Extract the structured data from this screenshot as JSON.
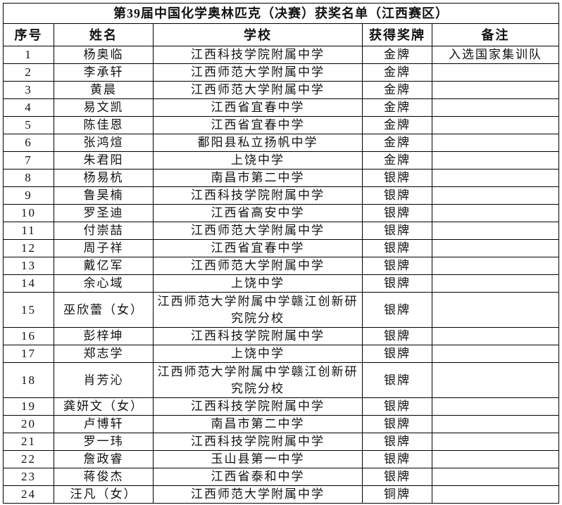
{
  "title": "第39届中国化学奥林匹克（决赛）获奖名单（江西赛区）",
  "headers": [
    "序号",
    "姓名",
    "学校",
    "获得奖牌",
    "备注"
  ],
  "rows": [
    {
      "no": "1",
      "name": "杨奥临",
      "school": "江西科技学院附属中学",
      "medal": "金牌",
      "note": "入选国家集训队"
    },
    {
      "no": "2",
      "name": "李承轩",
      "school": "江西师范大学附属中学",
      "medal": "金牌",
      "note": ""
    },
    {
      "no": "3",
      "name": "黄晨",
      "school": "江西师范大学附属中学",
      "medal": "金牌",
      "note": ""
    },
    {
      "no": "4",
      "name": "易文凯",
      "school": "江西省宜春中学",
      "medal": "金牌",
      "note": ""
    },
    {
      "no": "5",
      "name": "陈佳恩",
      "school": "江西省宜春中学",
      "medal": "金牌",
      "note": ""
    },
    {
      "no": "6",
      "name": "张鸿煊",
      "school": "鄱阳县私立扬帆中学",
      "medal": "金牌",
      "note": ""
    },
    {
      "no": "7",
      "name": "朱君阳",
      "school": "上饶中学",
      "medal": "金牌",
      "note": ""
    },
    {
      "no": "8",
      "name": "杨易杭",
      "school": "南昌市第二中学",
      "medal": "银牌",
      "note": ""
    },
    {
      "no": "9",
      "name": "鲁昊楠",
      "school": "江西科技学院附属中学",
      "medal": "银牌",
      "note": ""
    },
    {
      "no": "10",
      "name": "罗圣迪",
      "school": "江西省高安中学",
      "medal": "银牌",
      "note": ""
    },
    {
      "no": "11",
      "name": "付崇喆",
      "school": "江西师范大学附属中学",
      "medal": "银牌",
      "note": ""
    },
    {
      "no": "12",
      "name": "周子祥",
      "school": "江西省宜春中学",
      "medal": "银牌",
      "note": ""
    },
    {
      "no": "13",
      "name": "戴亿军",
      "school": "江西师范大学附属中学",
      "medal": "银牌",
      "note": ""
    },
    {
      "no": "14",
      "name": "余心域",
      "school": "上饶中学",
      "medal": "银牌",
      "note": ""
    },
    {
      "no": "15",
      "name": "巫欣蕾（女）",
      "school": "江西师范大学附属中学赣江创新研究院分校",
      "medal": "银牌",
      "note": ""
    },
    {
      "no": "16",
      "name": "彭梓坤",
      "school": "江西科技学院附属中学",
      "medal": "银牌",
      "note": ""
    },
    {
      "no": "17",
      "name": "郑志学",
      "school": "上饶中学",
      "medal": "银牌",
      "note": ""
    },
    {
      "no": "18",
      "name": "肖芳沁",
      "school": "江西师范大学附属中学赣江创新研究院分校",
      "medal": "银牌",
      "note": ""
    },
    {
      "no": "19",
      "name": "龚妍文（女）",
      "school": "江西科技学院附属中学",
      "medal": "银牌",
      "note": ""
    },
    {
      "no": "20",
      "name": "卢博轩",
      "school": "南昌市第二中学",
      "medal": "银牌",
      "note": ""
    },
    {
      "no": "21",
      "name": "罗一玮",
      "school": "江西科技学院附属中学",
      "medal": "银牌",
      "note": ""
    },
    {
      "no": "22",
      "name": "詹政睿",
      "school": "玉山县第一中学",
      "medal": "银牌",
      "note": ""
    },
    {
      "no": "23",
      "name": "蒋俊杰",
      "school": "江西省泰和中学",
      "medal": "银牌",
      "note": ""
    },
    {
      "no": "24",
      "name": "汪凡（女）",
      "school": "江西师范大学附属中学",
      "medal": "铜牌",
      "note": ""
    }
  ]
}
